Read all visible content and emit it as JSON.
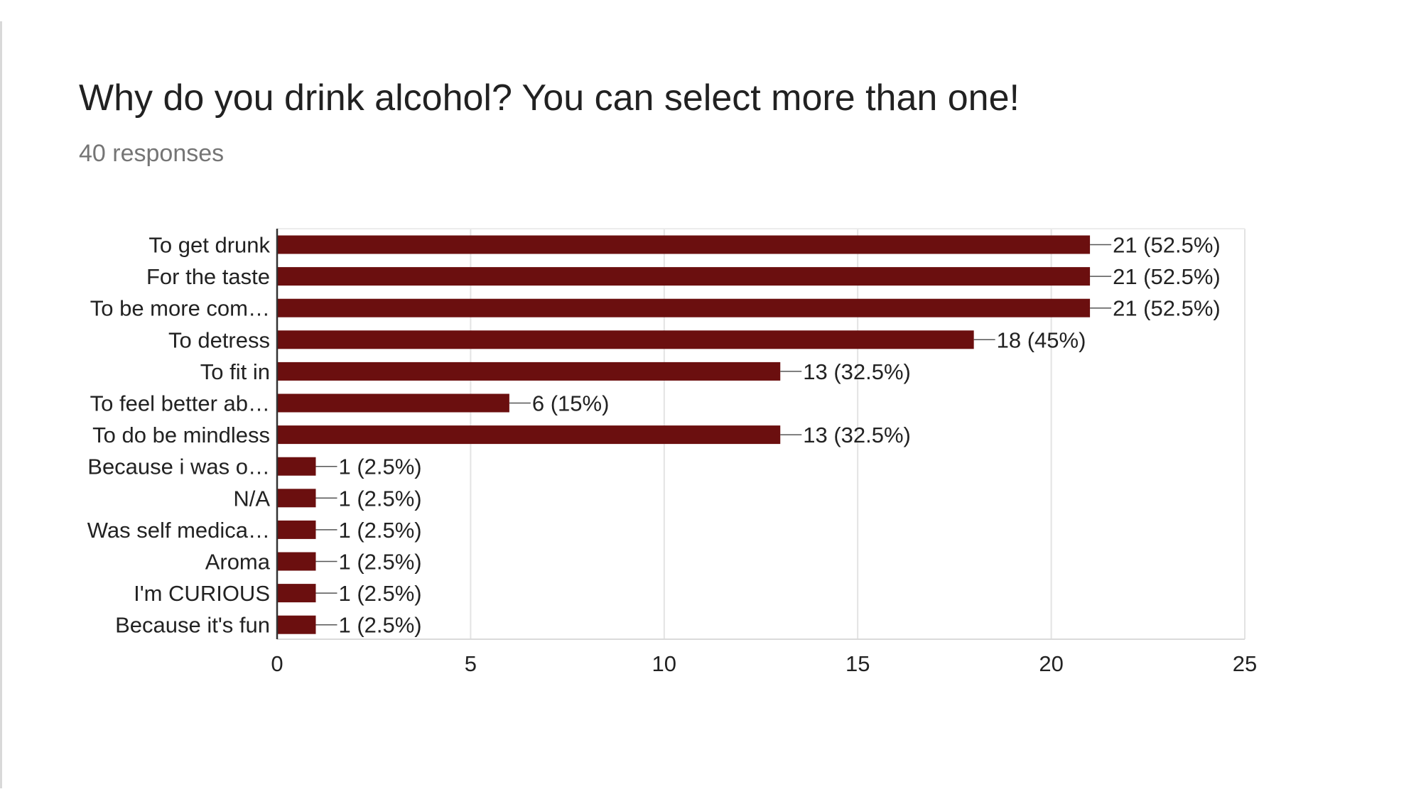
{
  "question": {
    "title": "Why do you drink alcohol? You can select more than one!",
    "responses": "40 responses"
  },
  "chart_data": {
    "type": "bar",
    "orientation": "horizontal",
    "title": "Why do you drink alcohol? You can select more than one!",
    "subtitle": "40 responses",
    "xlabel": "",
    "ylabel": "",
    "xlim": [
      0,
      25
    ],
    "x_ticks": [
      0,
      5,
      10,
      15,
      20,
      25
    ],
    "grid": true,
    "legend": "none",
    "bar_color": "#6b0f0f",
    "categories": [
      "To get drunk",
      "For the taste",
      "To be more com…",
      "To detress",
      "To fit in",
      "To feel better ab…",
      "To do be mindless",
      "Because i was o…",
      "N/A",
      "Was self medica…",
      "Aroma",
      "I'm CURIOUS",
      "Because it's fun"
    ],
    "values": [
      21,
      21,
      21,
      18,
      13,
      6,
      13,
      1,
      1,
      1,
      1,
      1,
      1
    ],
    "labels": [
      "21 (52.5%)",
      "21 (52.5%)",
      "21 (52.5%)",
      "18 (45%)",
      "13 (32.5%)",
      "6 (15%)",
      "13 (32.5%)",
      "1 (2.5%)",
      "1 (2.5%)",
      "1 (2.5%)",
      "1 (2.5%)",
      "1 (2.5%)",
      "1 (2.5%)"
    ]
  }
}
